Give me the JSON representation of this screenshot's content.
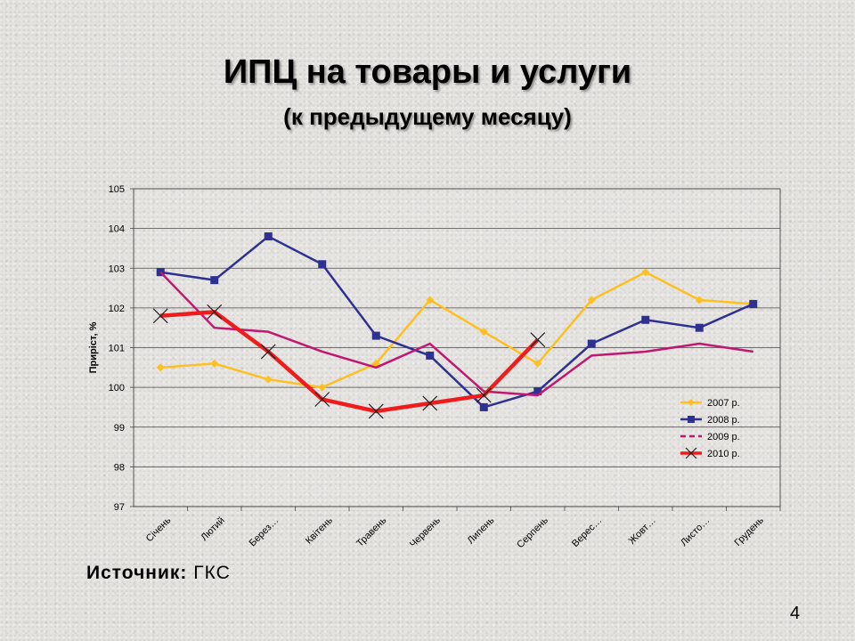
{
  "slide": {
    "title": "ИПЦ на товары и услуги",
    "subtitle": "(к предыдущему месяцу)",
    "source_label": "Источник:",
    "source_value": "ГКС",
    "page_number": "4"
  },
  "chart_data": {
    "type": "line",
    "title": "",
    "ylabel": "Приріст, %",
    "xlabel": "",
    "ylim": [
      97,
      105
    ],
    "yticks": [
      97,
      98,
      99,
      100,
      101,
      102,
      103,
      104,
      105
    ],
    "grid": true,
    "legend_position": "right-inside",
    "categories": [
      "Січень",
      "Лютий",
      "Берез…",
      "Квітень",
      "Травень",
      "Червень",
      "Липень",
      "Серпень",
      "Верес…",
      "Жовт…",
      "Листо…",
      "Грудень"
    ],
    "series": [
      {
        "name": "2007 р.",
        "color": "#FDC020",
        "marker": "diamond",
        "dash": "solid",
        "width": 2.5,
        "values": [
          100.5,
          100.6,
          100.2,
          100.0,
          100.6,
          102.2,
          101.4,
          100.6,
          102.2,
          102.9,
          102.2,
          102.1
        ]
      },
      {
        "name": "2008 р.",
        "color": "#2E3192",
        "marker": "square",
        "dash": "solid",
        "width": 2.5,
        "values": [
          102.9,
          102.7,
          103.8,
          103.1,
          101.3,
          100.8,
          99.5,
          99.9,
          101.1,
          101.7,
          101.5,
          102.1
        ]
      },
      {
        "name": "2009 р.",
        "color": "#C0176F",
        "marker": "none",
        "dash": "solid",
        "width": 2.5,
        "values": [
          102.9,
          101.5,
          101.4,
          100.9,
          100.5,
          101.1,
          99.9,
          99.8,
          100.8,
          100.9,
          101.1,
          100.9
        ]
      },
      {
        "name": "2010 р.",
        "color": "#EE1C1C",
        "marker": "x",
        "dash": "solid",
        "width": 4.5,
        "values": [
          101.8,
          101.9,
          100.9,
          99.7,
          99.4,
          99.6,
          99.8,
          101.2,
          null,
          null,
          null,
          null
        ]
      }
    ]
  }
}
